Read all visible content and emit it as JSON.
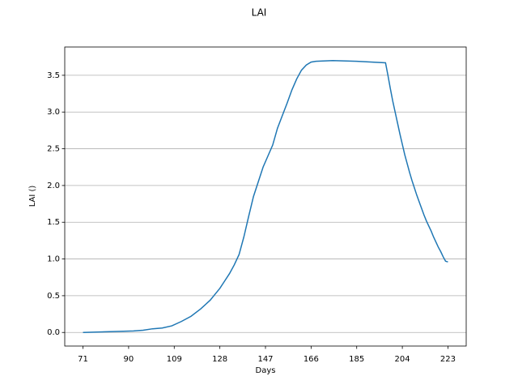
{
  "chart_data": {
    "type": "line",
    "title": "LAI",
    "x_label": "Days",
    "y_label": "LAI ()",
    "x": [
      71,
      92,
      96,
      100,
      104,
      108,
      112,
      116,
      120,
      124,
      126,
      128,
      130,
      132,
      134,
      136,
      138,
      140,
      142,
      144,
      146,
      148,
      150,
      152,
      154,
      156,
      158,
      160,
      162,
      164,
      166,
      168,
      175,
      185,
      197,
      198,
      199,
      200,
      201,
      202,
      203,
      204,
      205,
      206,
      207,
      208,
      209,
      210,
      211,
      212,
      213,
      214,
      215,
      216,
      217,
      218,
      219,
      220,
      221,
      222,
      223
    ],
    "series": [
      {
        "name": "LAI",
        "color": "#1f77b4",
        "values": [
          0,
          0.02,
          0.03,
          0.05,
          0.06,
          0.09,
          0.15,
          0.22,
          0.32,
          0.44,
          0.52,
          0.6,
          0.7,
          0.8,
          0.92,
          1.06,
          1.3,
          1.58,
          1.85,
          2.05,
          2.25,
          2.4,
          2.55,
          2.78,
          2.95,
          3.12,
          3.3,
          3.45,
          3.57,
          3.64,
          3.68,
          3.69,
          3.7,
          3.69,
          3.67,
          3.5,
          3.32,
          3.15,
          3.0,
          2.85,
          2.7,
          2.56,
          2.42,
          2.3,
          2.18,
          2.07,
          1.97,
          1.87,
          1.78,
          1.69,
          1.6,
          1.52,
          1.45,
          1.38,
          1.3,
          1.23,
          1.16,
          1.1,
          1.03,
          0.97,
          0.96
        ]
      }
    ],
    "xlim": [
      63.4,
      230.6
    ],
    "xticks": [
      71,
      90,
      109,
      128,
      147,
      166,
      185,
      204,
      223
    ],
    "ylim": [
      -0.185,
      3.885
    ],
    "yticks": [
      {
        "value": 0,
        "label": "0.0"
      },
      {
        "value": 0.5,
        "label": "0.5"
      },
      {
        "value": 1,
        "label": "1.0"
      },
      {
        "value": 1.5,
        "label": "1.5"
      },
      {
        "value": 2,
        "label": "2.0"
      },
      {
        "value": 2.5,
        "label": "2.5"
      },
      {
        "value": 3,
        "label": "3.0"
      },
      {
        "value": 3.5,
        "label": "3.5"
      }
    ],
    "grid": "y"
  }
}
